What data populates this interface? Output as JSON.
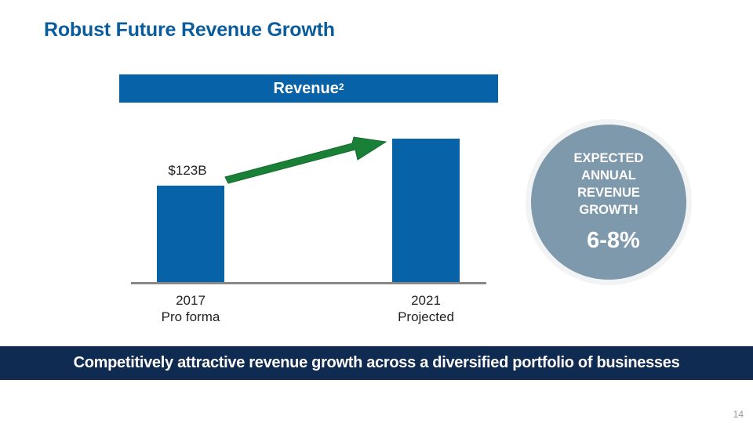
{
  "slide": {
    "title": "Robust Future Revenue Growth",
    "page_number": "14"
  },
  "chart_header": {
    "label": "Revenue",
    "superscript": "2"
  },
  "chart_data": {
    "type": "bar",
    "title": "Revenue",
    "categories": [
      "2017\nPro forma",
      "2021\nProjected"
    ],
    "category_lines": [
      [
        "2017",
        "Pro forma"
      ],
      [
        "2021",
        "Projected"
      ]
    ],
    "values": [
      123,
      183
    ],
    "unit": "$B",
    "data_labels": [
      "$123B",
      ""
    ],
    "xlabel": "",
    "ylabel": "",
    "ylim": [
      0,
      190
    ],
    "grid": false,
    "annotations": [
      {
        "type": "arrow",
        "from": "2017",
        "to": "2021",
        "color": "#1a8037"
      }
    ],
    "colors": {
      "bar": "#0862a8",
      "axis": "#888888",
      "arrow": "#1a8037"
    }
  },
  "callout": {
    "label_lines": [
      "EXPECTED",
      "ANNUAL",
      "REVENUE",
      "GROWTH"
    ],
    "value": "6-8%"
  },
  "banner": {
    "text": "Competitively attractive revenue growth across a diversified portfolio of businesses"
  }
}
